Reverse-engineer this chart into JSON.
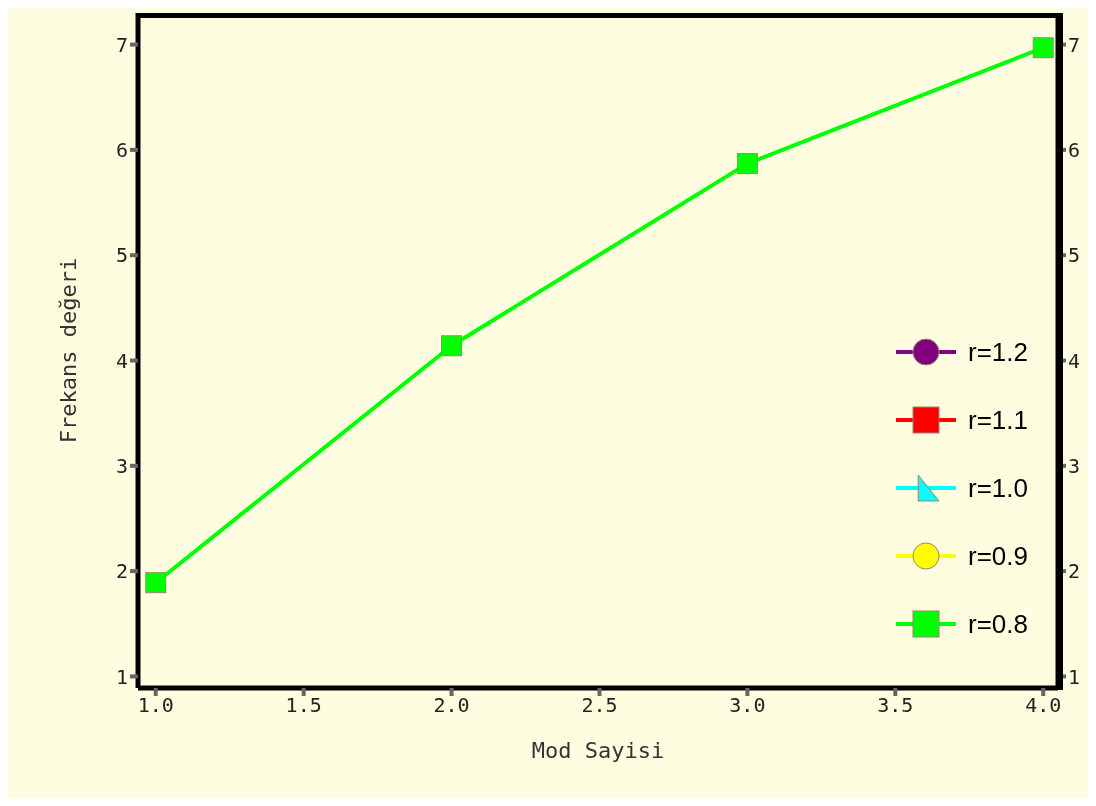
{
  "chart_data": {
    "type": "line",
    "xlabel": "Mod Sayisi",
    "ylabel": "Frekans değeri",
    "x": [
      1,
      2,
      3,
      4
    ],
    "series": [
      {
        "name": "r=1.2",
        "color": "#800080",
        "marker": "circle",
        "values": [
          null,
          null,
          null,
          null
        ]
      },
      {
        "name": "r=1.1",
        "color": "#ff0000",
        "marker": "square",
        "values": [
          null,
          null,
          null,
          null
        ]
      },
      {
        "name": "r=1.0",
        "color": "#00ffff",
        "marker": "triangle",
        "values": [
          null,
          null,
          null,
          null
        ]
      },
      {
        "name": "r=0.9",
        "color": "#ffff00",
        "marker": "circle",
        "values": [
          null,
          null,
          null,
          null
        ]
      },
      {
        "name": "r=0.8",
        "color": "#00ff00",
        "marker": "square",
        "values": [
          1.89,
          4.14,
          5.87,
          6.97
        ]
      }
    ],
    "xlim": [
      0.94,
      4.05
    ],
    "xticks": [
      {
        "value": 1,
        "label": "1.0"
      },
      1.5,
      {
        "value": 2,
        "label": "2.0"
      },
      2.5,
      {
        "value": 3,
        "label": "3.0"
      },
      3.5,
      {
        "value": 4,
        "label": "4.0"
      }
    ],
    "ylim": [
      0.89,
      7.3
    ],
    "yticks": [
      1,
      2,
      3,
      4,
      5,
      6,
      7
    ],
    "y2lim": [
      0.89,
      7.3
    ],
    "y2ticks": [
      1,
      2,
      3,
      4,
      5,
      6,
      7
    ],
    "grid": false,
    "legend": "right",
    "line_style": "solid"
  }
}
